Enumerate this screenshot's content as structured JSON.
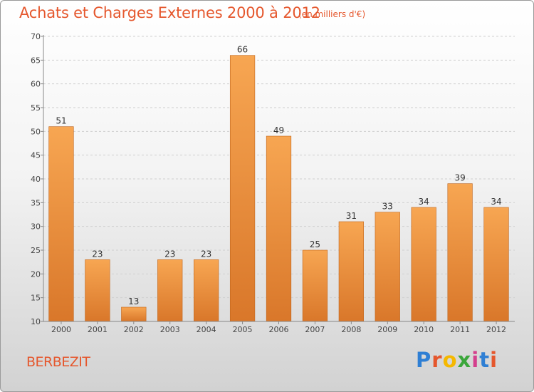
{
  "header": {
    "title": "Achats et Charges Externes 2000 à 2012",
    "subtitle": "(en milliers d'€)"
  },
  "footer": {
    "commune": "BERBEZIT",
    "logo": "Proxiti",
    "logo_colors": [
      "#2f7fd4",
      "#e5572d",
      "#f5b800",
      "#3aa63a",
      "#d43f8d",
      "#2f7fd4",
      "#e5572d"
    ]
  },
  "chart_data": {
    "type": "bar",
    "categories": [
      "2000",
      "2001",
      "2002",
      "2003",
      "2004",
      "2005",
      "2006",
      "2007",
      "2008",
      "2009",
      "2010",
      "2011",
      "2012"
    ],
    "values": [
      51,
      23,
      13,
      23,
      23,
      66,
      49,
      25,
      31,
      33,
      34,
      39,
      34
    ],
    "ylim": [
      10,
      70
    ],
    "yticks": [
      10,
      15,
      20,
      25,
      30,
      35,
      40,
      45,
      50,
      55,
      60,
      65,
      70
    ],
    "grid": "horizontal-dashed",
    "bar_color_top": "#f7a652",
    "bar_color_bottom": "#d9772a",
    "bar_edge": "#c0651c"
  }
}
